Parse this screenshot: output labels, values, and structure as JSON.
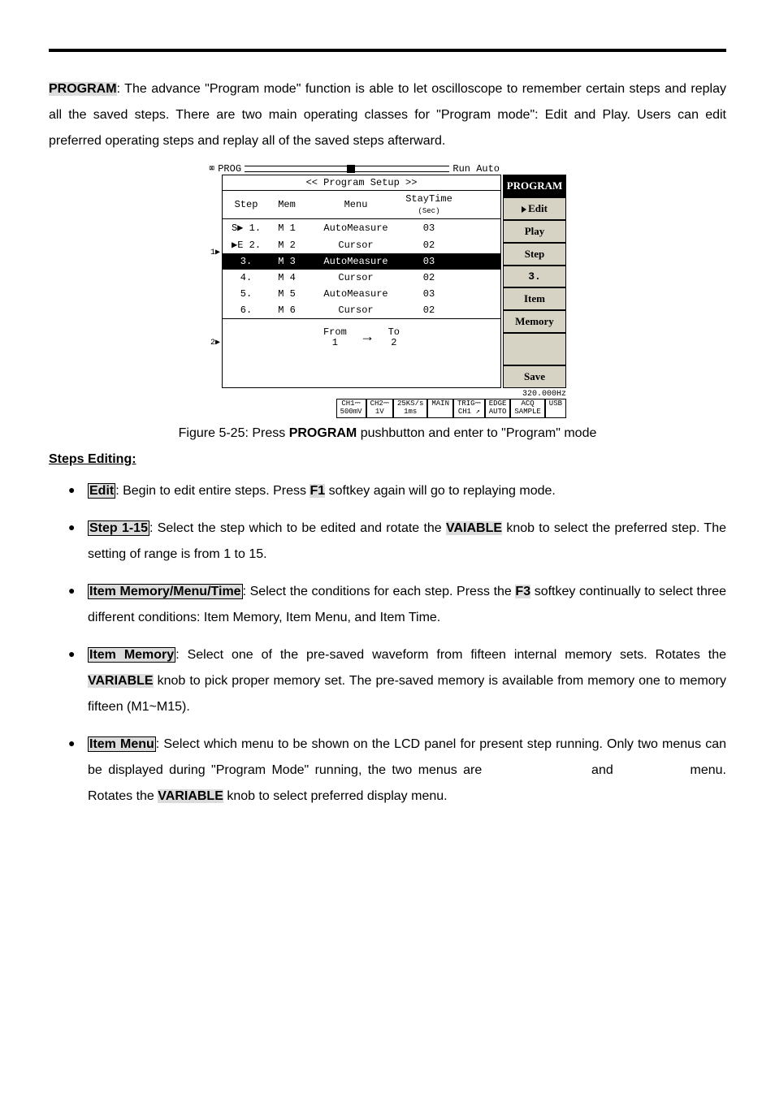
{
  "intro": {
    "program_label": "PROGRAM",
    "text_after": ": The advance \"Program mode\" function is able to let oscilloscope to remember certain steps and replay all the saved steps. There are two main operating classes for \"Program mode\": Edit and Play. Users can edit preferred operating steps and replay all of the saved steps afterward."
  },
  "scope": {
    "battery_icon": "⌧",
    "top_mode": "PROG",
    "top_right": "Run Auto",
    "setup_title": "<< Program Setup >>",
    "head": {
      "c1": "Step",
      "c2": "Mem",
      "c3": "Menu",
      "c4a": "StayTime",
      "c4b": "(Sec)"
    },
    "rows": [
      {
        "marker": "S▶",
        "step": "1.",
        "mem": "M 1",
        "menu": "AutoMeasure",
        "time": "03",
        "selected": false
      },
      {
        "marker": "▶E",
        "step": "2.",
        "mem": "M 2",
        "menu": "Cursor",
        "time": "02",
        "selected": false
      },
      {
        "marker": "",
        "step": "3.",
        "mem": "M 3",
        "menu": "AutoMeasure",
        "time": "03",
        "selected": true
      },
      {
        "marker": "",
        "step": "4.",
        "mem": "M 4",
        "menu": "Cursor",
        "time": "02",
        "selected": false
      },
      {
        "marker": "",
        "step": "5.",
        "mem": "M 5",
        "menu": "AutoMeasure",
        "time": "03",
        "selected": false
      },
      {
        "marker": "",
        "step": "6.",
        "mem": "M 6",
        "menu": "Cursor",
        "time": "02",
        "selected": false
      }
    ],
    "left_markers": {
      "a": "1▶",
      "b": "2▶"
    },
    "from_to": {
      "from_label": "From",
      "from_val": "1",
      "to_label": "To",
      "to_val": "2"
    },
    "softkeys": {
      "header": "PROGRAM",
      "k1": "Edit",
      "k2": "Play",
      "k3": "Step",
      "k4": "3.",
      "k5": "Item",
      "k6": "Memory",
      "k7": "Save"
    },
    "freq": "320.000Hz",
    "status": {
      "c1a": "CH1⎓",
      "c1b": "500mV",
      "c2a": "CH2⎓",
      "c2b": "1V",
      "c3a": "25KS/s",
      "c3b": "1ms",
      "c4a": "MAIN",
      "c4b": "",
      "c5a": "TRIG⎓",
      "c5b": "CH1 ↗",
      "c6a": "EDGE",
      "c6b": "AUTO",
      "c7a": "ACQ",
      "c7b": "SAMPLE",
      "c8a": "USB",
      "c8b": ""
    }
  },
  "caption": {
    "pre": "Figure 5-25: Press ",
    "bold": "PROGRAM",
    "post": " pushbutton and enter to \"Program\" mode"
  },
  "section_heading": "Steps Editing:",
  "b1": {
    "label": "Edit",
    "rest": ": Begin to edit entire steps. Press ",
    "key": "F1",
    "tail": " softkey again will go to replaying mode."
  },
  "b2": {
    "label": "Step 1-15",
    "rest": ": Select the step which to be edited and rotate the ",
    "knob": "VAIABLE",
    "tail": " knob to select the preferred step. The setting of range is from 1 to 15."
  },
  "b3": {
    "label": "Item Memory/Menu/Time",
    "rest": ": Select the conditions for each step. Press the ",
    "key": "F3",
    "tail": " softkey continually to select three different conditions: Item Memory, Item Menu, and Item Time."
  },
  "s1": {
    "label": "Item Memory",
    "rest": ": Select one of the pre-saved waveform from fifteen internal memory sets. Rotates the ",
    "knob": "VARIABLE",
    "tail": " knob to pick proper memory set. The pre-saved memory is available from memory one to memory fifteen (M1~M15)."
  },
  "s2": {
    "label": "Item Menu",
    "rest": ": Select which menu to be shown on the LCD panel for present step running. Only two menus can be displayed during \"Program Mode\" running, the two menus are ",
    "mid": " and ",
    "mid2": " menu. Rotates the ",
    "knob": "VARIABLE",
    "tail": " knob to select preferred display menu."
  }
}
